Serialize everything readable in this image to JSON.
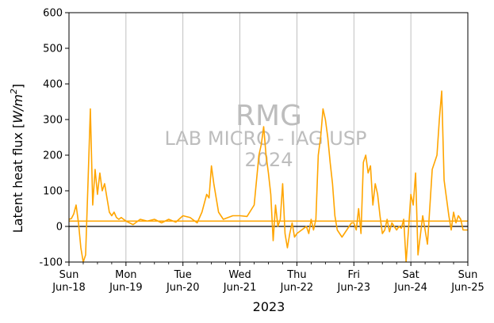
{
  "chart_data": {
    "type": "line",
    "xlabel": "2023",
    "ylabel_main": "Latent heat flux [",
    "ylabel_unit": "W/m",
    "ylabel_sup": "2",
    "ylabel_end": "]",
    "ylim": [
      -100,
      600
    ],
    "yticks": [
      -100,
      0,
      100,
      200,
      300,
      400,
      500,
      600
    ],
    "xlim": [
      "2023-06-18",
      "2023-06-25"
    ],
    "xticks": [
      {
        "date": "2023-06-18",
        "day": "Sun",
        "date_label": "Jun-18"
      },
      {
        "date": "2023-06-19",
        "day": "Mon",
        "date_label": "Jun-19"
      },
      {
        "date": "2023-06-20",
        "day": "Tue",
        "date_label": "Jun-20"
      },
      {
        "date": "2023-06-21",
        "day": "Wed",
        "date_label": "Jun-21"
      },
      {
        "date": "2023-06-22",
        "day": "Thu",
        "date_label": "Jun-22"
      },
      {
        "date": "2023-06-23",
        "day": "Fri",
        "date_label": "Jun-23"
      },
      {
        "date": "2023-06-24",
        "day": "Sat",
        "date_label": "Jun-24"
      },
      {
        "date": "2023-06-25",
        "day": "Sun",
        "date_label": "Jun-25"
      }
    ],
    "grid": "x",
    "zero_line": 0,
    "mean_line": 15,
    "series_color": "#FFA500",
    "zero_line_color": "#000000",
    "grid_color": "#b0b0b0",
    "series": [
      {
        "x": [
          "2023-06-18 00:00",
          "2023-06-18 01:00",
          "2023-06-18 02:00",
          "2023-06-18 03:00",
          "2023-06-18 04:00",
          "2023-06-18 05:00",
          "2023-06-18 06:00",
          "2023-06-18 07:00",
          "2023-06-18 08:00",
          "2023-06-18 09:00",
          "2023-06-18 10:00",
          "2023-06-18 11:00",
          "2023-06-18 12:00",
          "2023-06-18 13:00",
          "2023-06-18 14:00",
          "2023-06-18 15:00",
          "2023-06-18 16:00",
          "2023-06-18 17:00",
          "2023-06-18 18:00",
          "2023-06-18 19:00",
          "2023-06-18 20:00",
          "2023-06-18 21:00",
          "2023-06-18 22:00",
          "2023-06-18 23:00",
          "2023-06-19 00:00",
          "2023-06-19 03:00",
          "2023-06-19 06:00",
          "2023-06-19 09:00",
          "2023-06-19 12:00",
          "2023-06-19 15:00",
          "2023-06-19 18:00",
          "2023-06-19 21:00",
          "2023-06-20 00:00",
          "2023-06-20 03:00",
          "2023-06-20 06:00",
          "2023-06-20 08:00",
          "2023-06-20 10:00",
          "2023-06-20 11:00",
          "2023-06-20 12:00",
          "2023-06-20 13:00",
          "2023-06-20 14:00",
          "2023-06-20 15:00",
          "2023-06-20 17:00",
          "2023-06-20 19:00",
          "2023-06-20 21:00",
          "2023-06-21 00:00",
          "2023-06-21 03:00",
          "2023-06-21 06:00",
          "2023-06-21 08:00",
          "2023-06-21 09:00",
          "2023-06-21 10:00",
          "2023-06-21 11:00",
          "2023-06-21 12:00",
          "2023-06-21 13:00",
          "2023-06-21 14:00",
          "2023-06-21 15:00",
          "2023-06-21 16:00",
          "2023-06-21 17:00",
          "2023-06-21 18:00",
          "2023-06-21 19:00",
          "2023-06-21 20:00",
          "2023-06-21 21:00",
          "2023-06-21 22:00",
          "2023-06-21 23:00",
          "2023-06-22 00:00",
          "2023-06-22 02:00",
          "2023-06-22 04:00",
          "2023-06-22 05:00",
          "2023-06-22 06:00",
          "2023-06-22 07:00",
          "2023-06-22 08:00",
          "2023-06-22 09:00",
          "2023-06-22 10:00",
          "2023-06-22 11:00",
          "2023-06-22 12:00",
          "2023-06-22 13:00",
          "2023-06-22 14:00",
          "2023-06-22 15:00",
          "2023-06-22 16:00",
          "2023-06-22 17:00",
          "2023-06-22 18:00",
          "2023-06-22 19:00",
          "2023-06-22 21:00",
          "2023-06-22 23:00",
          "2023-06-23 00:00",
          "2023-06-23 01:00",
          "2023-06-23 02:00",
          "2023-06-23 03:00",
          "2023-06-23 04:00",
          "2023-06-23 05:00",
          "2023-06-23 06:00",
          "2023-06-23 07:00",
          "2023-06-23 08:00",
          "2023-06-23 09:00",
          "2023-06-23 10:00",
          "2023-06-23 11:00",
          "2023-06-23 12:00",
          "2023-06-23 13:00",
          "2023-06-23 14:00",
          "2023-06-23 15:00",
          "2023-06-23 16:00",
          "2023-06-23 17:00",
          "2023-06-23 18:00",
          "2023-06-23 19:00",
          "2023-06-23 20:00",
          "2023-06-23 21:00",
          "2023-06-23 22:00",
          "2023-06-23 23:00",
          "2023-06-24 00:00",
          "2023-06-24 01:00",
          "2023-06-24 02:00",
          "2023-06-24 03:00",
          "2023-06-24 05:00",
          "2023-06-24 07:00",
          "2023-06-24 09:00",
          "2023-06-24 11:00",
          "2023-06-24 12:00",
          "2023-06-24 13:00",
          "2023-06-24 14:00",
          "2023-06-24 15:00",
          "2023-06-24 16:00",
          "2023-06-24 17:00",
          "2023-06-24 18:00",
          "2023-06-24 19:00",
          "2023-06-24 20:00",
          "2023-06-24 21:00",
          "2023-06-24 22:00",
          "2023-06-24 23:00",
          "2023-06-25 00:00"
        ],
        "y": [
          20,
          22,
          35,
          60,
          10,
          -60,
          -100,
          -80,
          120,
          330,
          60,
          160,
          90,
          150,
          100,
          120,
          80,
          40,
          30,
          40,
          25,
          20,
          25,
          20,
          15,
          5,
          20,
          15,
          20,
          10,
          20,
          12,
          30,
          25,
          10,
          40,
          90,
          80,
          170,
          120,
          80,
          40,
          20,
          25,
          30,
          30,
          28,
          60,
          200,
          230,
          280,
          200,
          150,
          90,
          -40,
          60,
          0,
          20,
          120,
          -20,
          -60,
          -20,
          10,
          -30,
          -20,
          -10,
          0,
          -20,
          20,
          -10,
          20,
          200,
          250,
          330,
          300,
          250,
          180,
          120,
          30,
          -10,
          -20,
          -30,
          -10,
          10,
          10,
          -10,
          50,
          -20,
          180,
          200,
          150,
          170,
          60,
          120,
          90,
          30,
          -20,
          -10,
          20,
          -15,
          10,
          0,
          -10,
          0,
          -5,
          20,
          -100,
          -10,
          90,
          60,
          150,
          -80,
          30,
          -50,
          160,
          200,
          300,
          380,
          130,
          80,
          30,
          -10,
          40,
          10,
          30,
          20,
          -10,
          -10,
          -10
        ]
      }
    ]
  },
  "watermark": {
    "line1": "RMG",
    "line2": "LAB MICRO - IAG USP",
    "line3": "2024"
  }
}
